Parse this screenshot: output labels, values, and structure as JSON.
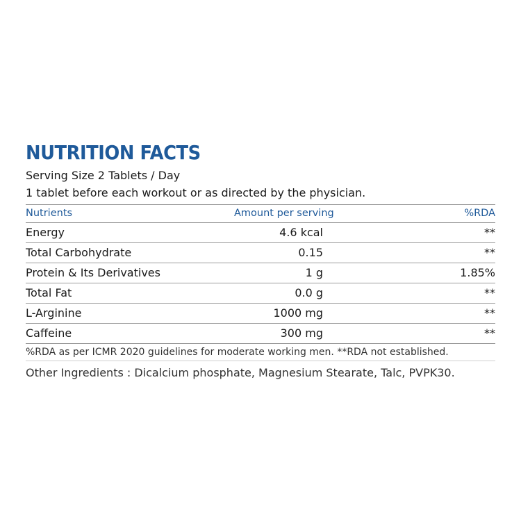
{
  "title": "NUTRITION FACTS",
  "serving_size": "Serving Size 2 Tablets / Day",
  "directions": "1 tablet before each workout or as directed by the physician.",
  "table": {
    "headers": {
      "nutrients": "Nutrients",
      "amount": "Amount per serving",
      "rda": "%RDA"
    },
    "rows": [
      {
        "nutrient": "Energy",
        "amount": "4.6 kcal",
        "rda": "**"
      },
      {
        "nutrient": "Total Carbohydrate",
        "amount": "0.15",
        "rda": "**"
      },
      {
        "nutrient": "Protein & Its Derivatives",
        "amount": "1 g",
        "rda": "1.85%"
      },
      {
        "nutrient": "Total Fat",
        "amount": "0.0 g",
        "rda": "**"
      },
      {
        "nutrient": "L-Arginine",
        "amount": "1000 mg",
        "rda": "**"
      },
      {
        "nutrient": "Caffeine",
        "amount": "300 mg",
        "rda": "**"
      }
    ]
  },
  "footnote": "%RDA as per ICMR 2020 guidelines for moderate working men. **RDA not established.",
  "other_ingredients": "Other Ingredients : Dicalcium phosphate, Magnesium Stearate, Talc, PVPK30.",
  "colors": {
    "heading_blue": "#1f5a9a",
    "text": "#1a1a1a",
    "rule": "#9a9a9a"
  }
}
